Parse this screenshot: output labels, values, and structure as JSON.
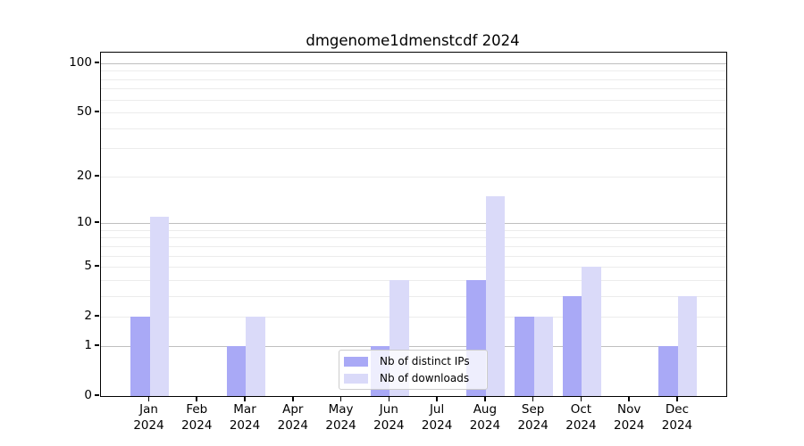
{
  "title": "dmgenome1dmenstcdf 2024",
  "colors": {
    "distinct_ips": "#a9a9f6",
    "downloads": "#dadaf9",
    "grid_major": "#bfbfbf",
    "grid_minor": "#ececec",
    "axis": "#000000",
    "legend_border": "#cccccc"
  },
  "legend": {
    "items": [
      {
        "label": "Nb of distinct IPs",
        "color_key": "distinct_ips"
      },
      {
        "label": "Nb of downloads",
        "color_key": "downloads"
      }
    ]
  },
  "y_axis": {
    "tick_values": [
      100,
      50,
      20,
      10,
      5,
      2,
      1,
      0
    ]
  },
  "x_axis": {
    "year": "2024",
    "months": [
      "Jan",
      "Feb",
      "Mar",
      "Apr",
      "May",
      "Jun",
      "Jul",
      "Aug",
      "Sep",
      "Oct",
      "Nov",
      "Dec"
    ]
  },
  "chart_data": {
    "type": "bar",
    "scale": "log1p",
    "title": "dmgenome1dmenstcdf 2024",
    "categories": [
      "Jan 2024",
      "Feb 2024",
      "Mar 2024",
      "Apr 2024",
      "May 2024",
      "Jun 2024",
      "Jul 2024",
      "Aug 2024",
      "Sep 2024",
      "Oct 2024",
      "Nov 2024",
      "Dec 2024"
    ],
    "series": [
      {
        "name": "Nb of distinct IPs",
        "color_key": "distinct_ips",
        "values": [
          2,
          0,
          1,
          0,
          0,
          1,
          0,
          4,
          2,
          3,
          0,
          1
        ]
      },
      {
        "name": "Nb of downloads",
        "color_key": "downloads",
        "values": [
          11,
          0,
          2,
          0,
          0,
          4,
          0,
          15,
          2,
          5,
          0,
          3
        ]
      }
    ],
    "ylim": [
      0,
      100
    ],
    "y_ticks": [
      0,
      1,
      2,
      5,
      10,
      20,
      50,
      100
    ],
    "grid": "horizontal major (1,10,100) + minor log lines",
    "legend_position": "inside axes, bottom center"
  }
}
